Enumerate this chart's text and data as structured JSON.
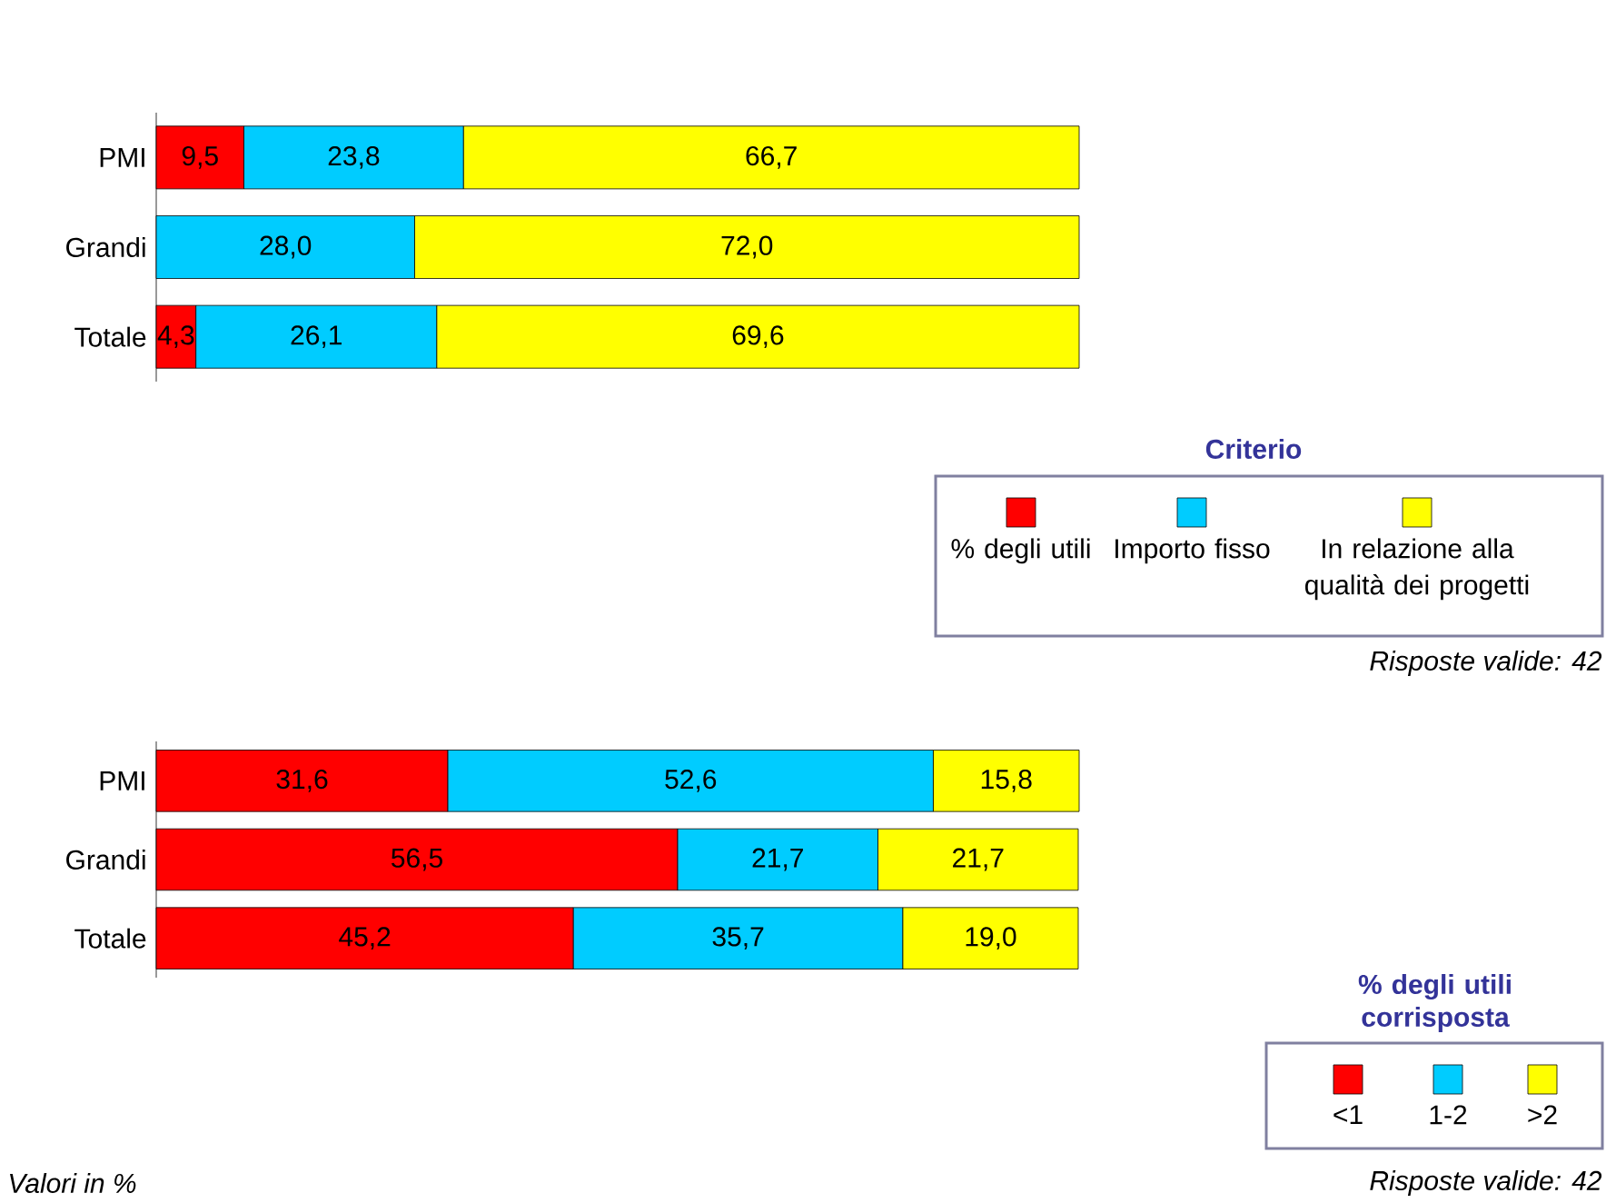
{
  "chart_data": [
    {
      "type": "bar",
      "stacked": true,
      "orientation": "horizontal",
      "categories": [
        "PMI",
        "Grandi",
        "Totale"
      ],
      "xlim": [
        0,
        100
      ],
      "tick_labels": "y",
      "legend": "bottom right",
      "legend_title": "Criterio",
      "series": [
        {
          "name": "% degli utili",
          "color": "#ff0000",
          "values": [
            9.5,
            null,
            4.3
          ],
          "value_labels": [
            "9,5",
            null,
            "4,3"
          ]
        },
        {
          "name": "Importo fisso",
          "color": "#00ccff",
          "values": [
            23.8,
            28.0,
            26.1
          ],
          "value_labels": [
            "23,8",
            "28,0",
            "26,1"
          ]
        },
        {
          "name": "In relazione alla qualità dei progetti",
          "color": "#ffff00",
          "values": [
            66.7,
            72.0,
            69.6
          ],
          "value_labels": [
            "66,7",
            "72,0",
            "69,6"
          ]
        }
      ],
      "annotations": [
        "Risposte valide: 42"
      ]
    },
    {
      "type": "bar",
      "stacked": true,
      "orientation": "horizontal",
      "categories": [
        "PMI",
        "Grandi",
        "Totale"
      ],
      "xlim": [
        0,
        100
      ],
      "tick_labels": "y",
      "legend": "bottom right",
      "legend_title": "% degli utili corrisposta",
      "series": [
        {
          "name": "<1",
          "color": "#ff0000",
          "values": [
            31.6,
            56.5,
            45.2
          ],
          "value_labels": [
            "31,6",
            "56,5",
            "45,2"
          ]
        },
        {
          "name": "1-2",
          "color": "#00ccff",
          "values": [
            52.6,
            21.7,
            35.7
          ],
          "value_labels": [
            "52,6",
            "21,7",
            "35,7"
          ]
        },
        {
          "name": ">2",
          "color": "#ffff00",
          "values": [
            15.8,
            21.7,
            19.0
          ],
          "value_labels": [
            "15,8",
            "21,7",
            "19,0"
          ]
        }
      ],
      "annotations": [
        "Valori in %",
        "Risposte valide: 42"
      ]
    }
  ]
}
